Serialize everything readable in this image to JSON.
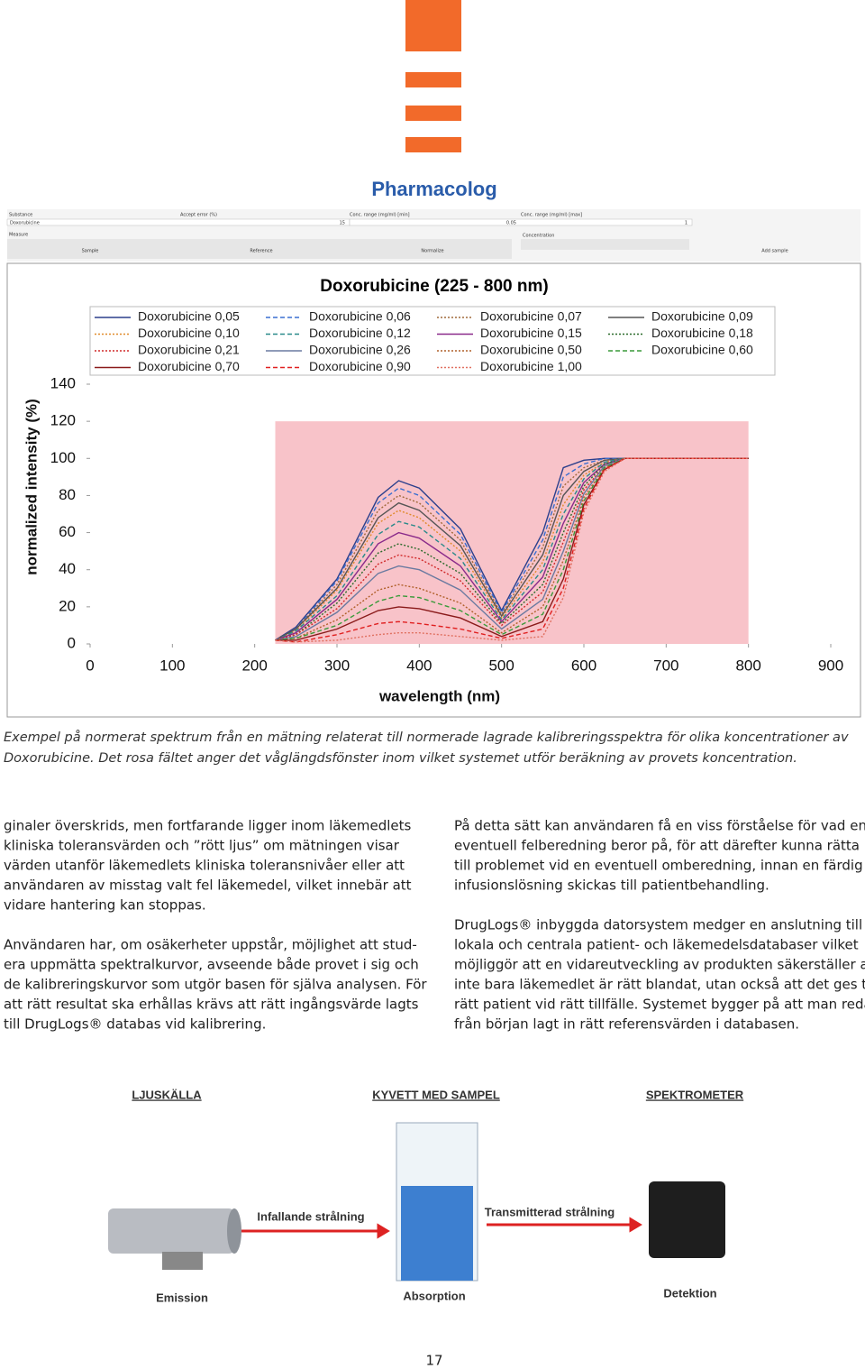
{
  "header": {
    "logo": "Pharmacolog"
  },
  "software": {
    "fields": [
      "Substance",
      "Accept error (%)",
      "Conc. range (mg/ml) [min]",
      "Conc. range (mg/ml) [max]"
    ],
    "values": [
      "Doxorubicine",
      "15",
      "0.05",
      "1"
    ],
    "measure": "Measure",
    "concentration": "Concentration",
    "buttons": [
      "Sample",
      "Reference",
      "Normalize",
      "Add sample"
    ]
  },
  "chart_data": {
    "type": "line",
    "title": "Doxorubicine (225 - 800 nm)",
    "window": [
      225,
      800
    ],
    "xlabel": "wavelength (nm)",
    "ylabel": "normalized intensity (%)",
    "xlim": [
      0,
      900
    ],
    "xticks": [
      0,
      100,
      200,
      300,
      400,
      500,
      600,
      700,
      800,
      900
    ],
    "ylim": [
      0,
      140
    ],
    "yticks": [
      0,
      20,
      40,
      60,
      80,
      100,
      120,
      140
    ],
    "x": [
      225,
      250,
      300,
      350,
      375,
      400,
      450,
      500,
      550,
      575,
      600,
      625,
      650,
      700,
      800
    ],
    "series": [
      {
        "name": "Doxorubicine 0,05",
        "color": "#2b3f8c",
        "style": "solid",
        "values": [
          2,
          9,
          35,
          79,
          88,
          84,
          62,
          18,
          60,
          95,
          99,
          100,
          100,
          100,
          100
        ]
      },
      {
        "name": "Doxorubicine 0,06",
        "color": "#3a6fd0",
        "style": "dashed",
        "values": [
          2,
          8,
          34,
          76,
          84,
          80,
          59,
          17,
          56,
          90,
          97,
          100,
          100,
          100,
          100
        ]
      },
      {
        "name": "Doxorubicine 0,07",
        "color": "#a06a3a",
        "style": "dotted",
        "values": [
          2,
          8,
          32,
          72,
          80,
          76,
          56,
          16,
          52,
          85,
          95,
          99,
          100,
          100,
          100
        ]
      },
      {
        "name": "Doxorubicine 0,09",
        "color": "#555555",
        "style": "solid",
        "values": [
          2,
          8,
          30,
          68,
          76,
          72,
          53,
          15,
          48,
          80,
          93,
          99,
          100,
          100,
          100
        ]
      },
      {
        "name": "Doxorubicine 0,10",
        "color": "#e08a2a",
        "style": "dotted",
        "values": [
          2,
          7,
          29,
          65,
          72,
          68,
          50,
          14,
          44,
          75,
          91,
          98,
          100,
          100,
          100
        ]
      },
      {
        "name": "Doxorubicine 0,12",
        "color": "#2a8a8a",
        "style": "dashed",
        "values": [
          2,
          7,
          26,
          59,
          66,
          63,
          46,
          13,
          40,
          70,
          89,
          98,
          100,
          100,
          100
        ]
      },
      {
        "name": "Doxorubicine 0,15",
        "color": "#8a2a8a",
        "style": "solid",
        "values": [
          2,
          6,
          24,
          54,
          60,
          57,
          42,
          12,
          36,
          65,
          87,
          97,
          100,
          100,
          100
        ]
      },
      {
        "name": "Doxorubicine 0,18",
        "color": "#2a6a2a",
        "style": "dotted",
        "values": [
          2,
          5,
          22,
          49,
          54,
          51,
          38,
          11,
          32,
          60,
          85,
          97,
          100,
          100,
          100
        ]
      },
      {
        "name": "Doxorubicine 0,21",
        "color": "#d02a2a",
        "style": "dotted",
        "values": [
          2,
          5,
          19,
          43,
          48,
          46,
          34,
          10,
          28,
          55,
          83,
          96,
          100,
          100,
          100
        ]
      },
      {
        "name": "Doxorubicine 0,26",
        "color": "#6a7aa0",
        "style": "solid",
        "values": [
          2,
          4,
          17,
          38,
          42,
          40,
          29,
          8,
          24,
          50,
          81,
          96,
          100,
          100,
          100
        ]
      },
      {
        "name": "Doxorubicine 0,50",
        "color": "#b0602a",
        "style": "dotted",
        "values": [
          2,
          3,
          13,
          29,
          32,
          30,
          22,
          6,
          20,
          45,
          79,
          95,
          100,
          100,
          100
        ]
      },
      {
        "name": "Doxorubicine 0,60",
        "color": "#3a9a3a",
        "style": "dashed",
        "values": [
          2,
          3,
          10,
          23,
          26,
          25,
          18,
          5,
          16,
          40,
          77,
          95,
          100,
          100,
          100
        ]
      },
      {
        "name": "Doxorubicine 0,70",
        "color": "#8a1a1a",
        "style": "solid",
        "values": [
          2,
          2,
          8,
          18,
          20,
          19,
          14,
          4,
          12,
          35,
          75,
          94,
          100,
          100,
          100
        ]
      },
      {
        "name": "Doxorubicine 0,90",
        "color": "#e02020",
        "style": "dashed",
        "values": [
          2,
          1,
          5,
          11,
          12,
          11,
          8,
          3,
          8,
          30,
          73,
          94,
          100,
          100,
          100
        ]
      },
      {
        "name": "Doxorubicine 1,00",
        "color": "#e07060",
        "style": "dotted",
        "values": [
          2,
          1,
          2,
          5,
          6,
          6,
          4,
          2,
          4,
          25,
          71,
          93,
          100,
          100,
          100
        ]
      }
    ]
  },
  "caption": [
    "Exempel på normerat spektrum från en mätning relaterat till normerade lagrade kalibreringsspektra för olika koncentrationer av",
    "Doxorubicine. Det rosa fältet anger det våglängdsfönster inom vilket systemet utför beräkning av provets koncentration."
  ],
  "body": {
    "left": [
      [
        "ginaler överskrids, men fortfarande ligger inom läkemedlets",
        "kliniska toleransvärden och ”rött ljus” om mätningen visar",
        "värden utanför läkemedlets kliniska toleransnivåer eller att",
        "användaren av misstag valt fel läkemedel, vilket innebär att",
        "vidare hantering kan stoppas."
      ],
      [
        "Användaren har, om osäkerheter uppstår, möjlighet att stud-",
        "era uppmätta spektralkurvor, avseende både provet i sig och",
        "de kalibreringskurvor som utgör basen för själva analysen. För",
        "att rätt resultat ska erhållas krävs att rätt ingångsvärde lagts",
        "till DrugLogs® databas vid kalibrering."
      ]
    ],
    "right": [
      [
        "På detta sätt kan användaren få en viss förståelse för vad en",
        "eventuell felberedning beror på, för att därefter kunna rätta",
        "till problemet vid en eventuell omberedning, innan en färdig",
        "infusionslösning skickas till patientbehandling."
      ],
      [
        "DrugLogs® inbyggda datorsystem medger en anslutning till",
        "lokala och centrala patient- och läkemedelsdatabaser vilket",
        "möjliggör att en vidareutveckling av produkten säkerställer att",
        "inte bara läkemedlet är rätt blandat, utan också att det ges till",
        "rätt patient vid rätt tillfälle. Systemet bygger på att man redan",
        "från början lagt in rätt referensvärden i databasen."
      ]
    ]
  },
  "diagram": {
    "headings": [
      "LJUSKÄLLA",
      "KYVETT MED SAMPEL",
      "SPEKTROMETER"
    ],
    "arrows": [
      "Infallande strålning",
      "Transmitterad strålning"
    ],
    "steps": [
      "Emission",
      "Absorption",
      "Detektion"
    ]
  },
  "page_number": "17"
}
